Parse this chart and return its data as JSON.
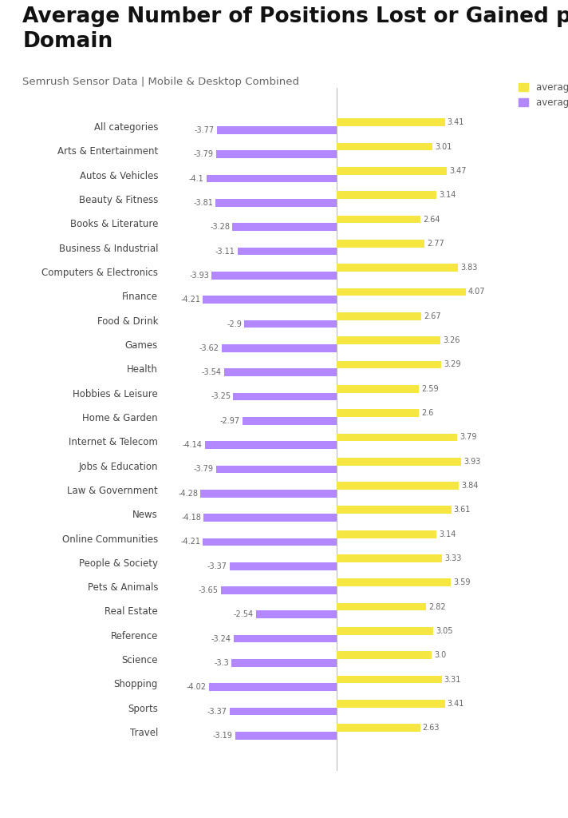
{
  "title": "Average Number of Positions Lost or Gained per\nDomain",
  "subtitle": "Semrush Sensor Data | Mobile & Desktop Combined",
  "categories": [
    "All categories",
    "Arts & Entertainment",
    "Autos & Vehicles",
    "Beauty & Fitness",
    "Books & Literature",
    "Business & Industrial",
    "Computers & Electronics",
    "Finance",
    "Food & Drink",
    "Games",
    "Health",
    "Hobbies & Leisure",
    "Home & Garden",
    "Internet & Telecom",
    "Jobs & Education",
    "Law & Government",
    "News",
    "Online Communities",
    "People & Society",
    "Pets & Animals",
    "Real Estate",
    "Reference",
    "Science",
    "Shopping",
    "Sports",
    "Travel"
  ],
  "gains": [
    3.41,
    3.01,
    3.47,
    3.14,
    2.64,
    2.77,
    3.83,
    4.07,
    2.67,
    3.26,
    3.29,
    2.59,
    2.6,
    3.79,
    3.93,
    3.84,
    3.61,
    3.14,
    3.33,
    3.59,
    2.82,
    3.05,
    3.0,
    3.31,
    3.41,
    2.63
  ],
  "losses": [
    -3.77,
    -3.79,
    -4.1,
    -3.81,
    -3.28,
    -3.11,
    -3.93,
    -4.21,
    -2.9,
    -3.62,
    -3.54,
    -3.25,
    -2.97,
    -4.14,
    -3.79,
    -4.28,
    -4.18,
    -4.21,
    -3.37,
    -3.65,
    -2.54,
    -3.24,
    -3.3,
    -4.02,
    -3.37,
    -3.19
  ],
  "gain_color": "#f5e642",
  "loss_color": "#b388ff",
  "background_color": "#ffffff",
  "bar_height": 0.32,
  "xlim": [
    -5.5,
    5.5
  ],
  "footer_bg": "#3d1f7a",
  "footer_text_color": "#ffffff",
  "legend_gain_label": "average gain",
  "legend_loss_label": "average loss",
  "title_fontsize": 19,
  "subtitle_fontsize": 9.5,
  "label_fontsize": 8.5,
  "value_fontsize": 7.0
}
